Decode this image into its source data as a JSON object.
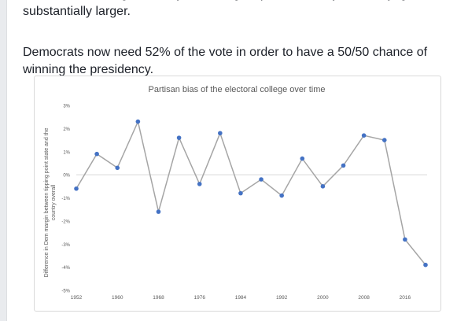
{
  "post": {
    "paragraph_1": "the electoral college, already at it's largest point in nearly a century, got substantially larger.",
    "paragraph_2": "Democrats now need 52% of the vote in order to have a 50/50 chance of winning the presidency."
  },
  "chart_data": {
    "type": "line",
    "title": "Partisan bias of the electoral college over time",
    "xlabel": "",
    "ylabel": "Difference in Dem margin between tipping point state and the country overall",
    "x": [
      1952,
      1956,
      1960,
      1964,
      1968,
      1972,
      1976,
      1980,
      1984,
      1988,
      1992,
      1996,
      2000,
      2004,
      2008,
      2012,
      2016,
      2020
    ],
    "values": [
      -0.6,
      0.9,
      0.3,
      2.3,
      -1.6,
      1.6,
      -0.4,
      1.8,
      -0.8,
      -0.2,
      -0.9,
      0.7,
      -0.5,
      0.4,
      1.7,
      1.5,
      -2.8,
      -3.9
    ],
    "xticks": [
      1952,
      1960,
      1968,
      1976,
      1984,
      1992,
      2000,
      2008,
      2016
    ],
    "yticks": [
      3,
      2,
      1,
      0,
      -1,
      -2,
      -3,
      -4,
      -5
    ],
    "ytick_labels": [
      "3%",
      "2%",
      "1%",
      "0%",
      "-1%",
      "-2%",
      "-3%",
      "-4%",
      "-5%"
    ],
    "ylim": [
      -5,
      3
    ],
    "xlim": [
      1952,
      2020
    ],
    "grid": false,
    "colors": {
      "line": "#a5a5a5",
      "marker": "#4472c4",
      "zero_line": "#d9d9d9",
      "text": "#595959"
    }
  }
}
